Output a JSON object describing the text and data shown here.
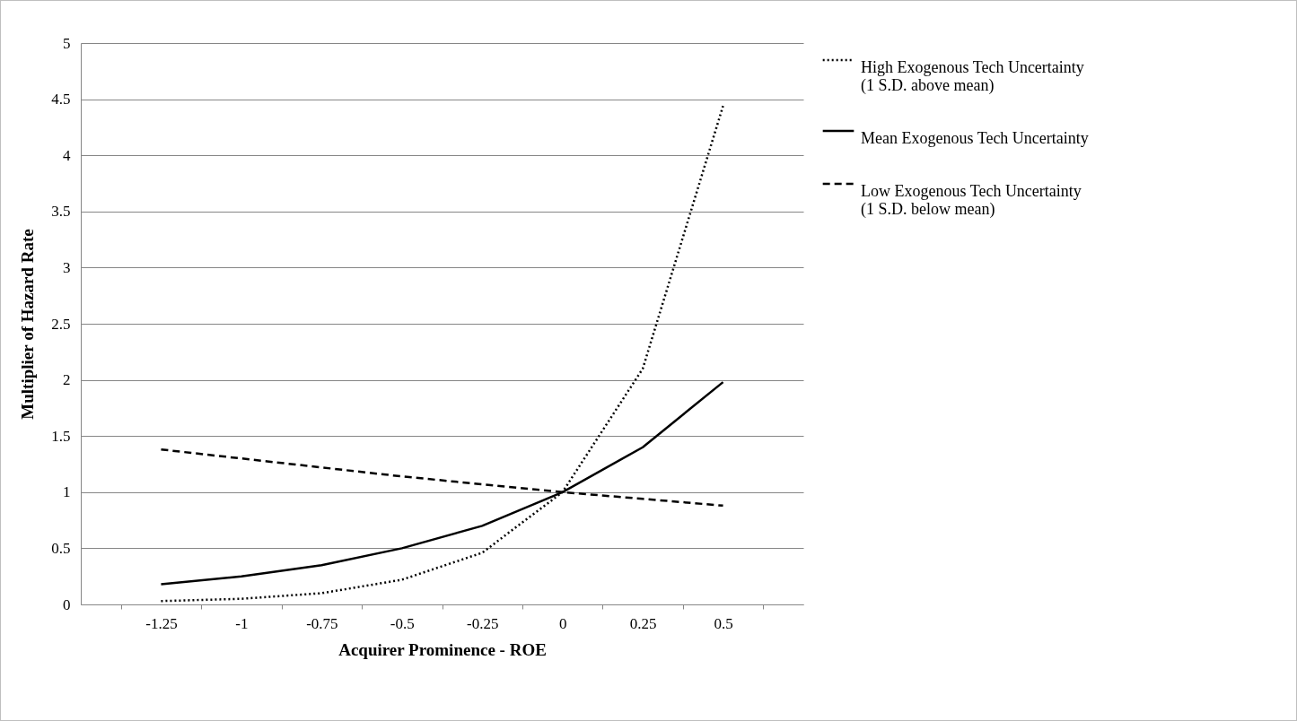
{
  "chart_data": {
    "type": "line",
    "xlabel": "Acquirer Prominence - ROE",
    "ylabel": "Multiplier of Hazard Rate",
    "categories": [
      "-1.25",
      "-1",
      "-0.75",
      "-0.5",
      "-0.25",
      "0",
      "0.25",
      "0.5"
    ],
    "series": [
      {
        "name": "High Exogenous Tech Uncertainty\n(1 S.D. above mean)",
        "color": "#000000",
        "line_style": "dotted",
        "values": [
          0.03,
          0.05,
          0.1,
          0.22,
          0.46,
          1.0,
          2.1,
          4.44
        ]
      },
      {
        "name": "Mean Exogenous Tech Uncertainty",
        "color": "#000000",
        "line_style": "solid",
        "values": [
          0.18,
          0.25,
          0.35,
          0.5,
          0.7,
          1.0,
          1.4,
          1.98
        ]
      },
      {
        "name": "Low Exogenous Tech Uncertainty\n(1 S.D. below mean)",
        "color": "#000000",
        "line_style": "dashed",
        "values": [
          1.38,
          1.3,
          1.22,
          1.14,
          1.07,
          1.0,
          0.94,
          0.88
        ]
      }
    ],
    "ylim": [
      0,
      5
    ],
    "yticks": [
      0,
      0.5,
      1,
      1.5,
      2,
      2.5,
      3,
      3.5,
      4,
      4.5,
      5
    ],
    "grid": "y",
    "legend": "right",
    "marker": "none"
  }
}
